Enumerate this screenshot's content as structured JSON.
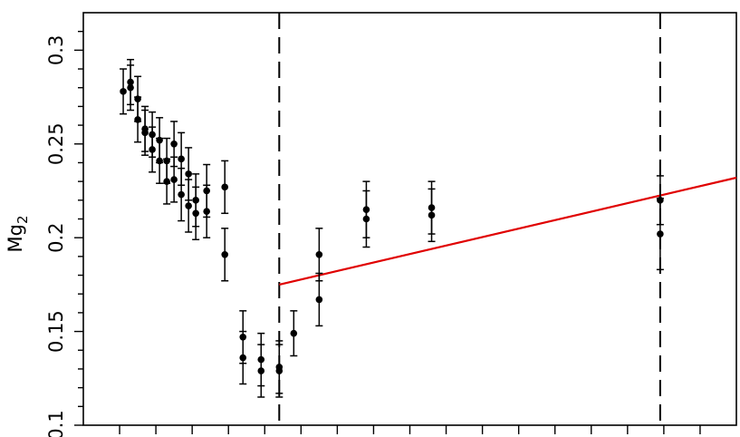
{
  "chart_data": {
    "type": "scatter",
    "ylabel": "Mg",
    "ylabel_subscript": "2",
    "xlabel": "",
    "ylim": [
      0.1,
      0.32
    ],
    "xlim": [
      0,
      36
    ],
    "y_ticks": [
      {
        "value": 0.1,
        "label": "0.1"
      },
      {
        "value": 0.15,
        "label": "0.15"
      },
      {
        "value": 0.2,
        "label": "0.2"
      },
      {
        "value": 0.25,
        "label": "0.25"
      },
      {
        "value": 0.3,
        "label": "0.3"
      }
    ],
    "x_ticks": [
      2,
      4,
      6,
      8,
      10,
      12,
      14,
      16,
      18,
      20,
      22,
      24,
      26,
      28,
      30,
      32,
      34
    ],
    "grid": false,
    "series": [
      {
        "points": [
          {
            "x": 2.2,
            "y": 0.278,
            "err": 0.012
          },
          {
            "x": 2.6,
            "y": 0.283,
            "err": 0.012
          },
          {
            "x": 2.6,
            "y": 0.28,
            "err": 0.012
          },
          {
            "x": 3.0,
            "y": 0.274,
            "err": 0.012
          },
          {
            "x": 3.0,
            "y": 0.263,
            "err": 0.012
          },
          {
            "x": 3.4,
            "y": 0.258,
            "err": 0.012
          },
          {
            "x": 3.4,
            "y": 0.256,
            "err": 0.012
          },
          {
            "x": 3.8,
            "y": 0.255,
            "err": 0.012
          },
          {
            "x": 3.8,
            "y": 0.247,
            "err": 0.012
          },
          {
            "x": 4.2,
            "y": 0.252,
            "err": 0.012
          },
          {
            "x": 4.2,
            "y": 0.241,
            "err": 0.012
          },
          {
            "x": 4.6,
            "y": 0.241,
            "err": 0.012
          },
          {
            "x": 4.6,
            "y": 0.23,
            "err": 0.012
          },
          {
            "x": 5.0,
            "y": 0.25,
            "err": 0.012
          },
          {
            "x": 5.0,
            "y": 0.231,
            "err": 0.012
          },
          {
            "x": 5.4,
            "y": 0.242,
            "err": 0.014
          },
          {
            "x": 5.4,
            "y": 0.223,
            "err": 0.014
          },
          {
            "x": 5.8,
            "y": 0.234,
            "err": 0.014
          },
          {
            "x": 5.8,
            "y": 0.217,
            "err": 0.014
          },
          {
            "x": 6.2,
            "y": 0.22,
            "err": 0.014
          },
          {
            "x": 6.2,
            "y": 0.213,
            "err": 0.014
          },
          {
            "x": 6.8,
            "y": 0.225,
            "err": 0.014
          },
          {
            "x": 6.8,
            "y": 0.214,
            "err": 0.014
          },
          {
            "x": 7.8,
            "y": 0.227,
            "err": 0.014
          },
          {
            "x": 7.8,
            "y": 0.191,
            "err": 0.014
          },
          {
            "x": 8.8,
            "y": 0.147,
            "err": 0.014
          },
          {
            "x": 8.8,
            "y": 0.136,
            "err": 0.014
          },
          {
            "x": 9.8,
            "y": 0.135,
            "err": 0.014
          },
          {
            "x": 9.8,
            "y": 0.129,
            "err": 0.014
          },
          {
            "x": 10.8,
            "y": 0.131,
            "err": 0.014
          },
          {
            "x": 10.8,
            "y": 0.129,
            "err": 0.014
          },
          {
            "x": 11.6,
            "y": 0.149,
            "err": 0.012
          },
          {
            "x": 13.0,
            "y": 0.191,
            "err": 0.014
          },
          {
            "x": 13.0,
            "y": 0.167,
            "err": 0.014
          },
          {
            "x": 15.6,
            "y": 0.215,
            "err": 0.015
          },
          {
            "x": 15.6,
            "y": 0.21,
            "err": 0.015
          },
          {
            "x": 19.2,
            "y": 0.216,
            "err": 0.014
          },
          {
            "x": 19.2,
            "y": 0.212,
            "err": 0.014
          },
          {
            "x": 31.8,
            "y": 0.22,
            "err": 0.013
          },
          {
            "x": 31.8,
            "y": 0.202,
            "err": 0.019
          }
        ]
      }
    ],
    "vertical_lines": [
      {
        "x": 10.8,
        "style": "dashed"
      },
      {
        "x": 31.8,
        "style": "dashed"
      }
    ],
    "fit_line": {
      "x": [
        10.8,
        36
      ],
      "y": [
        0.175,
        0.232
      ],
      "color": "#e00000"
    }
  }
}
